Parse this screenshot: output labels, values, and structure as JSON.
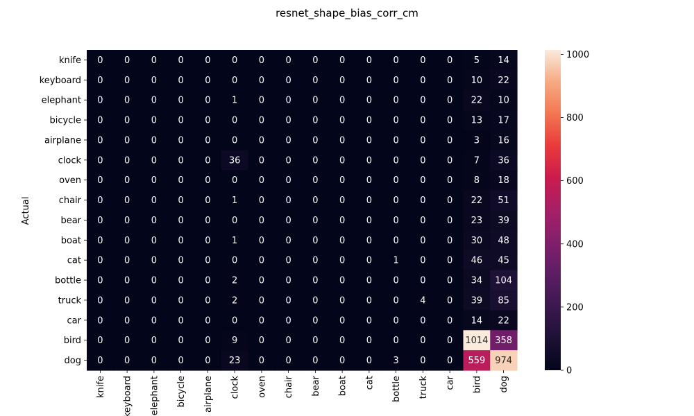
{
  "chart_data": {
    "type": "heatmap",
    "title": "resnet_shape_bias_corr_cm",
    "xlabel": "",
    "ylabel": "Actual",
    "row_labels": [
      "knife",
      "keyboard",
      "elephant",
      "bicycle",
      "airplane",
      "clock",
      "oven",
      "chair",
      "bear",
      "boat",
      "cat",
      "bottle",
      "truck",
      "car",
      "bird",
      "dog"
    ],
    "col_labels": [
      "knife",
      "keyboard",
      "elephant",
      "bicycle",
      "airplane",
      "clock",
      "oven",
      "chair",
      "bear",
      "boat",
      "cat",
      "bottle",
      "truck",
      "car",
      "bird",
      "dog"
    ],
    "values": [
      [
        0,
        0,
        0,
        0,
        0,
        0,
        0,
        0,
        0,
        0,
        0,
        0,
        0,
        0,
        5,
        14
      ],
      [
        0,
        0,
        0,
        0,
        0,
        0,
        0,
        0,
        0,
        0,
        0,
        0,
        0,
        0,
        10,
        22
      ],
      [
        0,
        0,
        0,
        0,
        0,
        1,
        0,
        0,
        0,
        0,
        0,
        0,
        0,
        0,
        22,
        10
      ],
      [
        0,
        0,
        0,
        0,
        0,
        0,
        0,
        0,
        0,
        0,
        0,
        0,
        0,
        0,
        13,
        17
      ],
      [
        0,
        0,
        0,
        0,
        0,
        0,
        0,
        0,
        0,
        0,
        0,
        0,
        0,
        0,
        3,
        16
      ],
      [
        0,
        0,
        0,
        0,
        0,
        36,
        0,
        0,
        0,
        0,
        0,
        0,
        0,
        0,
        7,
        36
      ],
      [
        0,
        0,
        0,
        0,
        0,
        0,
        0,
        0,
        0,
        0,
        0,
        0,
        0,
        0,
        8,
        18
      ],
      [
        0,
        0,
        0,
        0,
        0,
        1,
        0,
        0,
        0,
        0,
        0,
        0,
        0,
        0,
        22,
        51
      ],
      [
        0,
        0,
        0,
        0,
        0,
        0,
        0,
        0,
        0,
        0,
        0,
        0,
        0,
        0,
        23,
        39
      ],
      [
        0,
        0,
        0,
        0,
        0,
        1,
        0,
        0,
        0,
        0,
        0,
        0,
        0,
        0,
        30,
        48
      ],
      [
        0,
        0,
        0,
        0,
        0,
        0,
        0,
        0,
        0,
        0,
        0,
        1,
        0,
        0,
        46,
        45
      ],
      [
        0,
        0,
        0,
        0,
        0,
        2,
        0,
        0,
        0,
        0,
        0,
        0,
        0,
        0,
        34,
        104
      ],
      [
        0,
        0,
        0,
        0,
        0,
        2,
        0,
        0,
        0,
        0,
        0,
        0,
        4,
        0,
        39,
        85
      ],
      [
        0,
        0,
        0,
        0,
        0,
        0,
        0,
        0,
        0,
        0,
        0,
        0,
        0,
        0,
        14,
        22
      ],
      [
        0,
        0,
        0,
        0,
        0,
        9,
        0,
        0,
        0,
        0,
        0,
        0,
        0,
        0,
        1014,
        358
      ],
      [
        0,
        0,
        0,
        0,
        0,
        23,
        0,
        0,
        0,
        0,
        0,
        3,
        0,
        0,
        559,
        974
      ]
    ],
    "colorbar": {
      "min": 0,
      "max": 1014,
      "ticks": [
        0,
        200,
        400,
        600,
        800,
        1000
      ],
      "colormap": "rocket"
    },
    "grid": false
  }
}
